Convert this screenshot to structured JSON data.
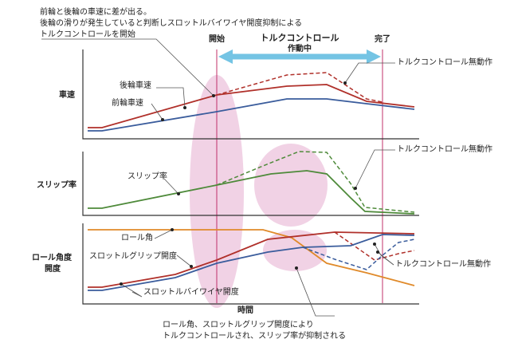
{
  "top_note": {
    "line1": "前輪と後輪の車速に差が出る。",
    "line2": "後輪の滑りが発生していると判断しスロットルバイワイヤ開度抑制による",
    "line3": "トルクコントロールを開始"
  },
  "markers": {
    "start": "開始",
    "control_line1": "トルクコントロール",
    "control_line2": "作動中",
    "end": "完了"
  },
  "panel_speed": {
    "title": "車速",
    "rear_label": "後輪車速",
    "front_label": "前輪車速",
    "inactive_label": "トルクコントロール無動作"
  },
  "panel_slip": {
    "title": "スリップ率",
    "slip_label": "スリップ率",
    "inactive_label": "トルクコントロール無動作"
  },
  "panel_roll": {
    "title_line1": "ロール角度",
    "title_line2": "開度",
    "roll_label": "ロール角",
    "grip_label": "スロットルグリップ開度",
    "bywire_label": "スロットルバイワイヤ開度",
    "inactive_label": "トルクコントロール無動作"
  },
  "x_axis": {
    "label": "時間"
  },
  "bottom_note": {
    "line1": "ロール角、スロットルグリップ開度により",
    "line2": "トルクコントロールされ、スリップ率が抑制される"
  },
  "colors": {
    "rear_speed": "#b0302a",
    "front_speed": "#3a5c9c",
    "slip": "#4e8a3a",
    "roll": "#e08a2a",
    "highlight": "#e8b4d4",
    "marker_line": "#c0306a",
    "arrow": "#74c4e4",
    "axis": "#333333"
  }
}
